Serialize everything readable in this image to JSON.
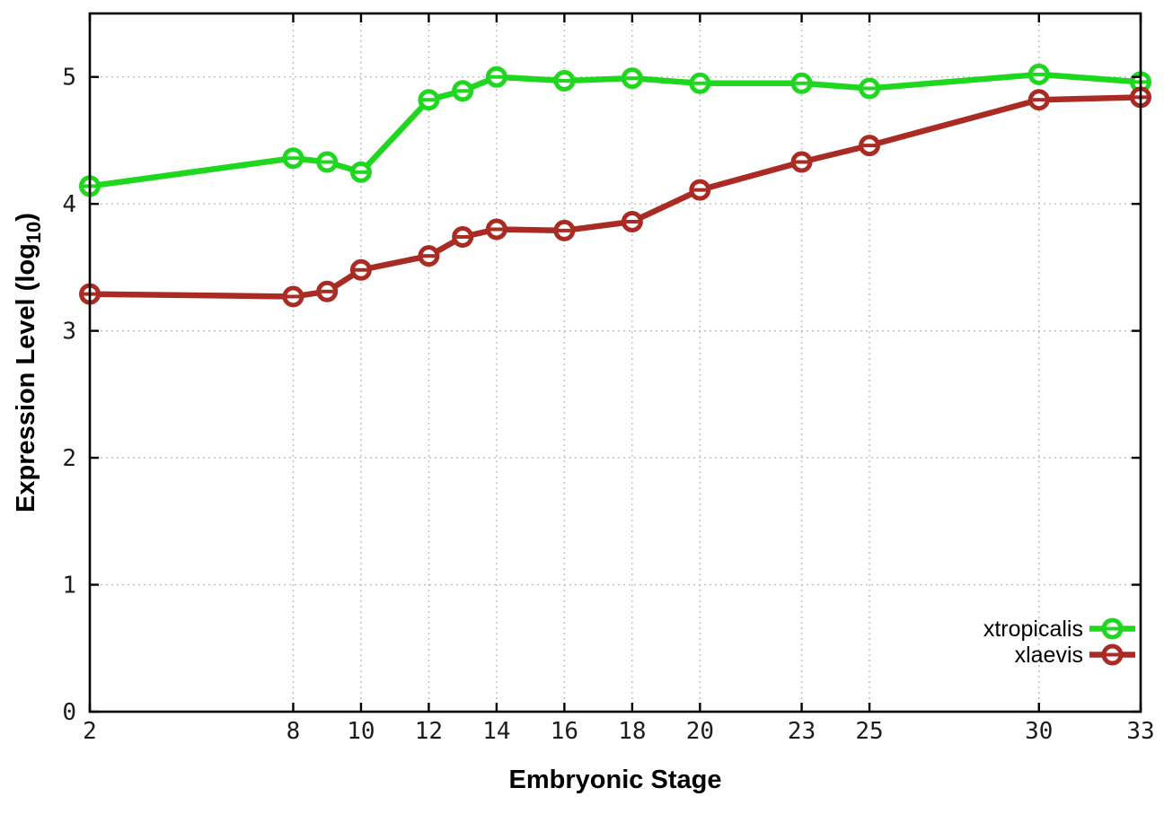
{
  "chart_data": {
    "type": "line",
    "title": "",
    "xlabel": "Embryonic Stage",
    "ylabel": "Expression Level (log10)",
    "ylabel_parts": {
      "pre": "Expression Level (log",
      "sub": "10",
      "post": ")"
    },
    "x": [
      2,
      8,
      9,
      10,
      12,
      13,
      14,
      16,
      18,
      20,
      23,
      25,
      30,
      33
    ],
    "x_tick_labels": [
      2,
      8,
      10,
      12,
      14,
      16,
      18,
      20,
      23,
      25,
      30,
      33
    ],
    "y_ticks": [
      0,
      1,
      2,
      3,
      4,
      5
    ],
    "xlim": [
      2,
      33
    ],
    "ylim": [
      0,
      5.5
    ],
    "grid": true,
    "legend_position": "inside bottom-right",
    "marker_style": "open-circle-with-errorbar-cap",
    "series": [
      {
        "name": "xtropicalis",
        "color": "#1ed71e",
        "values": [
          4.14,
          4.36,
          4.33,
          4.25,
          4.82,
          4.89,
          5.0,
          4.97,
          4.99,
          4.95,
          4.95,
          4.91,
          5.02,
          4.96
        ]
      },
      {
        "name": "xlaevis",
        "color": "#a92b23",
        "values": [
          3.29,
          3.27,
          3.31,
          3.48,
          3.59,
          3.74,
          3.8,
          3.79,
          3.86,
          4.11,
          4.33,
          4.46,
          4.82,
          4.84
        ]
      }
    ],
    "colors": {
      "grid": "#bdbdbd",
      "axis": "#000000",
      "tick_text": "#1c1c1c",
      "background": "#ffffff"
    }
  }
}
